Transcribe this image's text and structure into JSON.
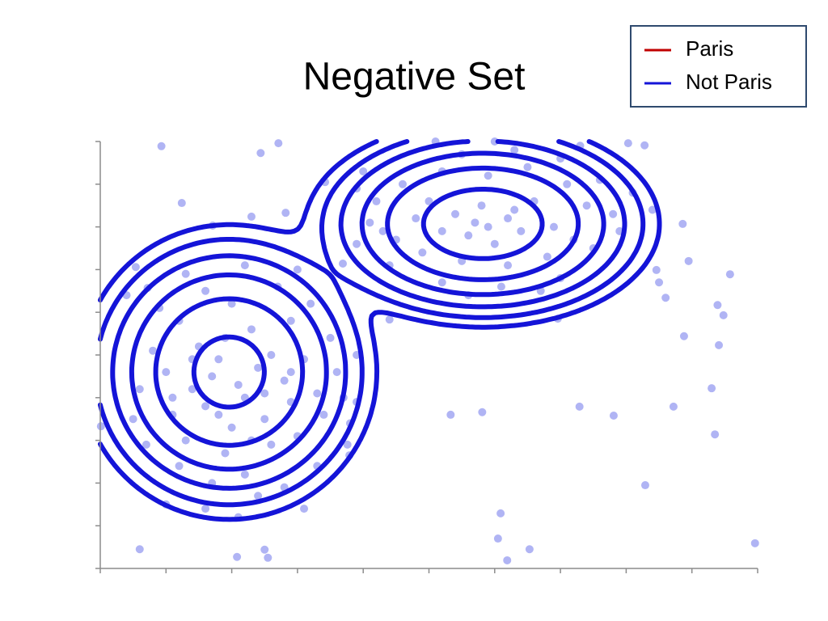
{
  "chart_data": {
    "type": "scatter",
    "title": "Negative Set",
    "legend": [
      {
        "name": "Paris",
        "color": "#c00000"
      },
      {
        "name": "Not Paris",
        "color": "#1414d8"
      }
    ],
    "legend_position": "upper right",
    "xlim": [
      0,
      10
    ],
    "ylim": [
      0,
      10
    ],
    "xticks": [
      0,
      1,
      2,
      3,
      4,
      5,
      6,
      7,
      8,
      9,
      10
    ],
    "yticks": [
      0,
      1,
      2,
      3,
      4,
      5,
      6,
      7,
      8,
      9,
      10
    ],
    "point_color": "#b0b4f4",
    "points": [
      [
        0.93,
        9.89
      ],
      [
        2.44,
        9.73
      ],
      [
        2.71,
        9.96
      ],
      [
        1.24,
        8.56
      ],
      [
        1.71,
        8.03
      ],
      [
        2.3,
        8.24
      ],
      [
        2.82,
        8.33
      ],
      [
        8.03,
        9.96
      ],
      [
        8.28,
        9.91
      ],
      [
        8.86,
        8.07
      ],
      [
        8.95,
        7.2
      ],
      [
        9.58,
        6.89
      ],
      [
        9.39,
        6.17
      ],
      [
        9.48,
        5.93
      ],
      [
        8.88,
        5.44
      ],
      [
        9.41,
        5.23
      ],
      [
        9.3,
        4.22
      ],
      [
        8.72,
        3.79
      ],
      [
        9.35,
        3.14
      ],
      [
        7.29,
        3.79
      ],
      [
        7.81,
        3.58
      ],
      [
        5.81,
        3.66
      ],
      [
        5.33,
        3.6
      ],
      [
        4.4,
        5.83
      ],
      [
        8.29,
        1.95
      ],
      [
        6.09,
        1.29
      ],
      [
        6.05,
        0.7
      ],
      [
        6.19,
        0.19
      ],
      [
        6.53,
        0.45
      ],
      [
        9.96,
        0.59
      ],
      [
        2.08,
        0.27
      ],
      [
        2.55,
        0.25
      ],
      [
        2.5,
        0.44
      ],
      [
        0.6,
        0.45
      ],
      [
        0.01,
        3.33
      ],
      [
        3.9,
        3.9
      ],
      [
        3.79,
        2.65
      ],
      [
        3.76,
        2.9
      ],
      [
        0.54,
        7.06
      ],
      [
        0.72,
        6.57
      ],
      [
        3.69,
        7.14
      ],
      [
        3.42,
        9.05
      ],
      [
        8.46,
        6.99
      ],
      [
        8.5,
        6.7
      ],
      [
        8.6,
        6.34
      ],
      [
        6.96,
        5.85
      ],
      [
        1.2,
        5.8
      ],
      [
        1.5,
        5.2
      ],
      [
        2.3,
        5.6
      ],
      [
        2.6,
        5.0
      ],
      [
        1.0,
        4.6
      ],
      [
        1.4,
        4.2
      ],
      [
        1.8,
        4.9
      ],
      [
        2.1,
        4.3
      ],
      [
        2.4,
        4.7
      ],
      [
        2.8,
        4.4
      ],
      [
        3.1,
        4.9
      ],
      [
        3.3,
        4.1
      ],
      [
        1.1,
        3.6
      ],
      [
        1.6,
        3.8
      ],
      [
        2.0,
        3.3
      ],
      [
        2.5,
        3.5
      ],
      [
        2.9,
        3.9
      ],
      [
        3.4,
        3.6
      ],
      [
        0.8,
        5.1
      ],
      [
        0.6,
        4.2
      ],
      [
        1.3,
        3.0
      ],
      [
        1.9,
        2.7
      ],
      [
        2.6,
        2.9
      ],
      [
        3.0,
        3.1
      ],
      [
        3.6,
        4.6
      ],
      [
        3.5,
        5.4
      ],
      [
        2.9,
        5.8
      ],
      [
        2.0,
        6.2
      ],
      [
        1.6,
        6.5
      ],
      [
        2.7,
        6.6
      ],
      [
        3.2,
        6.2
      ],
      [
        0.9,
        6.1
      ],
      [
        1.2,
        2.4
      ],
      [
        1.7,
        2.0
      ],
      [
        2.2,
        2.2
      ],
      [
        2.8,
        1.9
      ],
      [
        3.3,
        2.4
      ],
      [
        1.0,
        1.5
      ],
      [
        1.6,
        1.4
      ],
      [
        2.4,
        1.7
      ],
      [
        3.1,
        1.4
      ],
      [
        0.7,
        2.9
      ],
      [
        1.9,
        5.4
      ],
      [
        2.2,
        4.0
      ],
      [
        1.7,
        4.5
      ],
      [
        2.5,
        4.1
      ],
      [
        1.4,
        4.9
      ],
      [
        2.9,
        4.6
      ],
      [
        0.5,
        3.5
      ],
      [
        3.8,
        3.4
      ],
      [
        3.7,
        4.0
      ],
      [
        2.1,
        1.2
      ],
      [
        1.3,
        6.9
      ],
      [
        2.2,
        7.1
      ],
      [
        3.0,
        7.0
      ],
      [
        0.4,
        6.4
      ],
      [
        3.9,
        5.0
      ],
      [
        1.8,
        3.6
      ],
      [
        2.3,
        3.0
      ],
      [
        1.1,
        4.0
      ],
      [
        5.0,
        8.6
      ],
      [
        5.4,
        8.3
      ],
      [
        5.8,
        8.5
      ],
      [
        6.2,
        8.2
      ],
      [
        6.6,
        8.6
      ],
      [
        5.6,
        7.8
      ],
      [
        6.0,
        7.6
      ],
      [
        6.4,
        7.9
      ],
      [
        6.9,
        8.0
      ],
      [
        5.2,
        7.9
      ],
      [
        4.8,
        8.2
      ],
      [
        4.5,
        7.7
      ],
      [
        4.2,
        8.6
      ],
      [
        4.6,
        9.0
      ],
      [
        5.2,
        9.3
      ],
      [
        5.9,
        9.2
      ],
      [
        6.5,
        9.4
      ],
      [
        7.1,
        9.0
      ],
      [
        7.4,
        8.5
      ],
      [
        7.2,
        7.7
      ],
      [
        6.8,
        7.3
      ],
      [
        6.2,
        7.1
      ],
      [
        5.5,
        7.2
      ],
      [
        4.9,
        7.4
      ],
      [
        4.3,
        7.9
      ],
      [
        3.9,
        8.9
      ],
      [
        4.0,
        9.3
      ],
      [
        5.5,
        9.7
      ],
      [
        6.3,
        9.8
      ],
      [
        7.0,
        9.6
      ],
      [
        7.6,
        9.1
      ],
      [
        7.8,
        8.3
      ],
      [
        7.5,
        7.5
      ],
      [
        7.0,
        6.8
      ],
      [
        6.1,
        6.6
      ],
      [
        5.2,
        6.7
      ],
      [
        4.4,
        7.1
      ],
      [
        5.9,
        8.0
      ],
      [
        6.3,
        8.4
      ],
      [
        5.7,
        8.1
      ],
      [
        4.1,
        8.1
      ],
      [
        7.9,
        7.9
      ],
      [
        8.1,
        8.8
      ],
      [
        8.4,
        8.4
      ],
      [
        6.7,
        6.5
      ],
      [
        5.6,
        6.4
      ],
      [
        3.9,
        7.6
      ],
      [
        6.0,
        10.0
      ],
      [
        5.1,
        10.0
      ],
      [
        7.3,
        9.9
      ]
    ],
    "contours": {
      "color": "#1414d8",
      "components": [
        {
          "mean": [
            1.96,
            4.6
          ],
          "sd": [
            0.69,
            1.06
          ],
          "weight": 1
        },
        {
          "mean": [
            5.82,
            8.07
          ],
          "sd": [
            0.8,
            0.72
          ],
          "weight": 1.4
        }
      ],
      "levels": [
        0.74,
        0.27,
        0.1,
        0.037,
        0.0136,
        0.005
      ]
    }
  }
}
